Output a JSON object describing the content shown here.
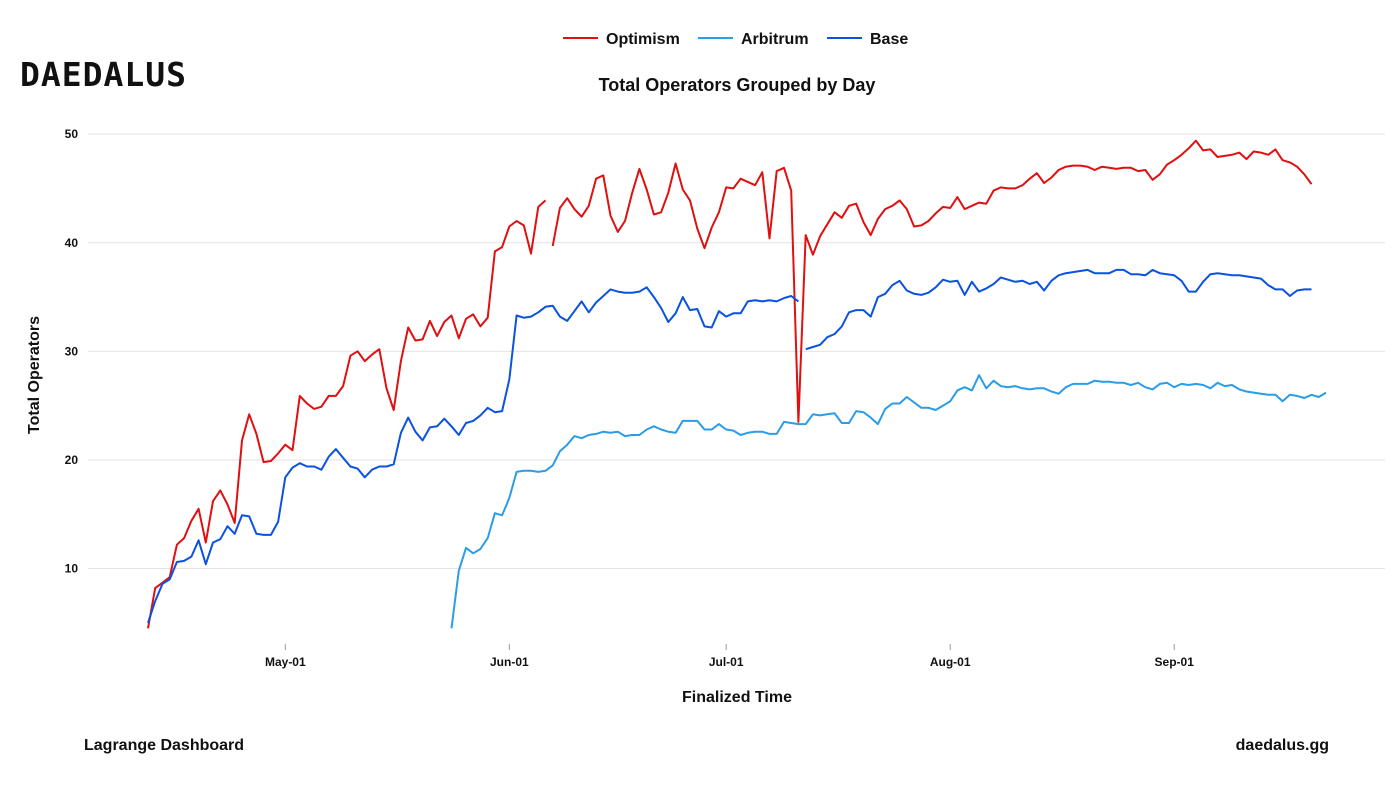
{
  "brand": {
    "logo_text": "DAEDALUS"
  },
  "footer": {
    "left": "Lagrange Dashboard",
    "right": "daedalus.gg"
  },
  "colors": {
    "optimism": "#e01010",
    "arbitrum": "#2b9ce6",
    "base": "#0b52e0",
    "grid": "#e3e3e3"
  },
  "chart_data": {
    "type": "line",
    "title": "Total Operators Grouped by Day",
    "xlabel": "Finalized Time",
    "ylabel": "Total Operators",
    "x_start": "2024-04-12",
    "x_range": [
      "2024-04-12",
      "2024-09-22"
    ],
    "ylim": [
      2.5,
      52.5
    ],
    "yticks": [
      10,
      20,
      30,
      40,
      50
    ],
    "xticks": [
      {
        "date": "2024-05-01",
        "label": "May-01"
      },
      {
        "date": "2024-06-01",
        "label": "Jun-01"
      },
      {
        "date": "2024-07-01",
        "label": "Jul-01"
      },
      {
        "date": "2024-08-01",
        "label": "Aug-01"
      },
      {
        "date": "2024-09-01",
        "label": "Sep-01"
      }
    ],
    "grid": true,
    "legend": "top-center",
    "series": [
      {
        "name": "Optimism",
        "color": "#e01010",
        "segments": [
          {
            "start": "2024-04-12",
            "values": [
              4.5,
              8.2,
              8.7,
              9.2,
              12.2,
              12.8,
              14.4,
              15.5,
              12.4,
              16.2,
              17.2,
              15.9,
              14.2,
              21.8,
              24.2,
              22.4,
              19.8,
              19.9,
              20.6,
              21.4,
              20.9,
              25.9,
              25.2,
              24.7,
              24.9,
              25.9,
              25.9,
              26.8,
              29.6,
              30.0,
              29.1,
              29.7,
              30.2,
              26.6,
              24.6,
              29.1,
              32.2,
              31.0,
              31.1,
              32.8,
              31.4,
              32.7,
              33.3,
              31.2,
              33.0,
              33.4,
              32.3,
              33.1,
              39.2,
              39.6,
              41.5,
              42.0,
              41.6,
              39.0,
              43.3,
              43.9
            ]
          },
          {
            "start": "2024-06-07",
            "values": [
              39.7,
              43.2,
              44.1,
              43.1,
              42.4,
              43.4,
              45.9,
              46.2,
              42.5,
              41.0,
              42.0,
              44.6,
              46.8,
              44.9,
              42.6,
              42.8,
              44.6,
              47.3,
              44.9,
              43.9,
              41.3,
              39.5,
              41.4,
              42.8,
              45.1,
              45.0,
              45.9,
              45.6,
              45.3,
              46.5,
              40.4,
              46.6,
              46.9,
              44.8,
              23.5,
              40.7,
              38.9,
              40.6,
              41.7,
              42.8,
              42.3,
              43.4,
              43.6,
              41.9,
              40.7,
              42.2,
              43.1,
              43.4,
              43.9,
              43.1,
              41.5,
              41.6,
              42.0,
              42.7,
              43.3,
              43.2,
              44.2,
              43.1,
              43.4,
              43.7,
              43.6,
              44.8,
              45.1,
              45.0,
              45.0,
              45.3,
              45.9,
              46.4,
              45.5,
              46.0,
              46.7,
              47.0,
              47.1,
              47.1,
              47.0,
              46.7,
              47.0,
              46.9,
              46.8,
              46.9,
              46.9,
              46.6,
              46.7,
              45.8,
              46.3,
              47.2,
              47.6,
              48.1,
              48.7,
              49.4,
              48.5,
              48.6,
              47.9,
              48.0,
              48.1,
              48.3,
              47.7,
              48.4,
              48.3,
              48.1,
              48.6,
              47.6,
              47.4,
              47.0,
              46.3,
              45.4
            ]
          }
        ]
      },
      {
        "name": "Arbitrum",
        "color": "#2b9ce6",
        "segments": [
          {
            "start": "2024-05-24",
            "values": [
              4.5,
              9.8,
              11.9,
              11.4,
              11.8,
              12.8,
              15.1,
              14.9,
              16.5,
              18.9,
              19.0,
              19.0,
              18.9,
              19.0,
              19.5,
              20.8,
              21.4,
              22.2,
              22.0,
              22.3,
              22.4,
              22.6,
              22.5,
              22.6,
              22.2,
              22.3,
              22.3,
              22.8,
              23.1,
              22.8,
              22.6,
              22.5,
              23.6,
              23.6,
              23.6,
              22.8,
              22.8,
              23.3,
              22.8,
              22.7,
              22.3,
              22.5,
              22.6,
              22.6,
              22.4,
              22.4,
              23.5,
              23.4,
              23.3,
              23.3,
              24.2,
              24.1,
              24.2,
              24.3,
              23.4,
              23.4,
              24.5,
              24.4,
              23.9,
              23.3,
              24.7,
              25.2,
              25.2,
              25.8,
              25.3,
              24.8,
              24.8,
              24.6,
              25.0,
              25.4,
              26.4,
              26.7,
              26.4,
              27.8,
              26.6,
              27.3,
              26.8,
              26.7,
              26.8,
              26.6,
              26.5,
              26.6,
              26.6,
              26.3,
              26.1,
              26.7,
              27.0,
              27.0,
              27.0,
              27.3,
              27.2,
              27.2,
              27.1,
              27.1,
              26.9,
              27.1,
              26.7,
              26.5,
              27.0,
              27.1,
              26.7,
              27.0,
              26.9,
              27.0,
              26.9,
              26.6,
              27.1,
              26.8,
              26.9,
              26.5,
              26.3,
              26.2,
              26.1,
              26.0,
              26.0,
              25.4,
              26.0,
              25.9,
              25.7,
              26.0,
              25.8,
              26.2
            ]
          }
        ]
      },
      {
        "name": "Base",
        "color": "#0b52e0",
        "segments": [
          {
            "start": "2024-04-12",
            "values": [
              5.0,
              7.0,
              8.6,
              9.0,
              10.6,
              10.7,
              11.1,
              12.6,
              10.4,
              12.4,
              12.7,
              13.9,
              13.2,
              14.9,
              14.8,
              13.2,
              13.1,
              13.1,
              14.3,
              18.4,
              19.3,
              19.7,
              19.4,
              19.4,
              19.1,
              20.3,
              21.0,
              20.2,
              19.4,
              19.2,
              18.4,
              19.1,
              19.4,
              19.4,
              19.6,
              22.5,
              23.9,
              22.6,
              21.8,
              23.0,
              23.1,
              23.8,
              23.1,
              22.3,
              23.4,
              23.6,
              24.1,
              24.8,
              24.4,
              24.5,
              27.4,
              33.3,
              33.1,
              33.2,
              33.6,
              34.1,
              34.2,
              33.2,
              32.8,
              33.7,
              34.6,
              33.6,
              34.5,
              35.1,
              35.7,
              35.5,
              35.4,
              35.4,
              35.5,
              35.9,
              35.0,
              34.0,
              32.7,
              33.5,
              35.0,
              33.8,
              33.9,
              32.3,
              32.2,
              33.7,
              33.2,
              33.5,
              33.5,
              34.6,
              34.7,
              34.6,
              34.7,
              34.6,
              34.9,
              35.1,
              34.6
            ]
          },
          {
            "start": "2024-07-12",
            "values": [
              30.2,
              30.4,
              30.6,
              31.3,
              31.6,
              32.3,
              33.6,
              33.8,
              33.8,
              33.2,
              35.0,
              35.3,
              36.1,
              36.5,
              35.6,
              35.3,
              35.2,
              35.4,
              35.9,
              36.6,
              36.4,
              36.5,
              35.2,
              36.4,
              35.5,
              35.8,
              36.2,
              36.8,
              36.6,
              36.4,
              36.5,
              36.2,
              36.4,
              35.6,
              36.5,
              37.0,
              37.2,
              37.3,
              37.4,
              37.5,
              37.2,
              37.2,
              37.2,
              37.5,
              37.5,
              37.1,
              37.1,
              37.0,
              37.5,
              37.2,
              37.1,
              37.0,
              36.5,
              35.5,
              35.5,
              36.4,
              37.1,
              37.2,
              37.1,
              37.0,
              37.0,
              36.9,
              36.8,
              36.7,
              36.1,
              35.7,
              35.7,
              35.1,
              35.6,
              35.7,
              35.7
            ]
          }
        ]
      }
    ]
  }
}
